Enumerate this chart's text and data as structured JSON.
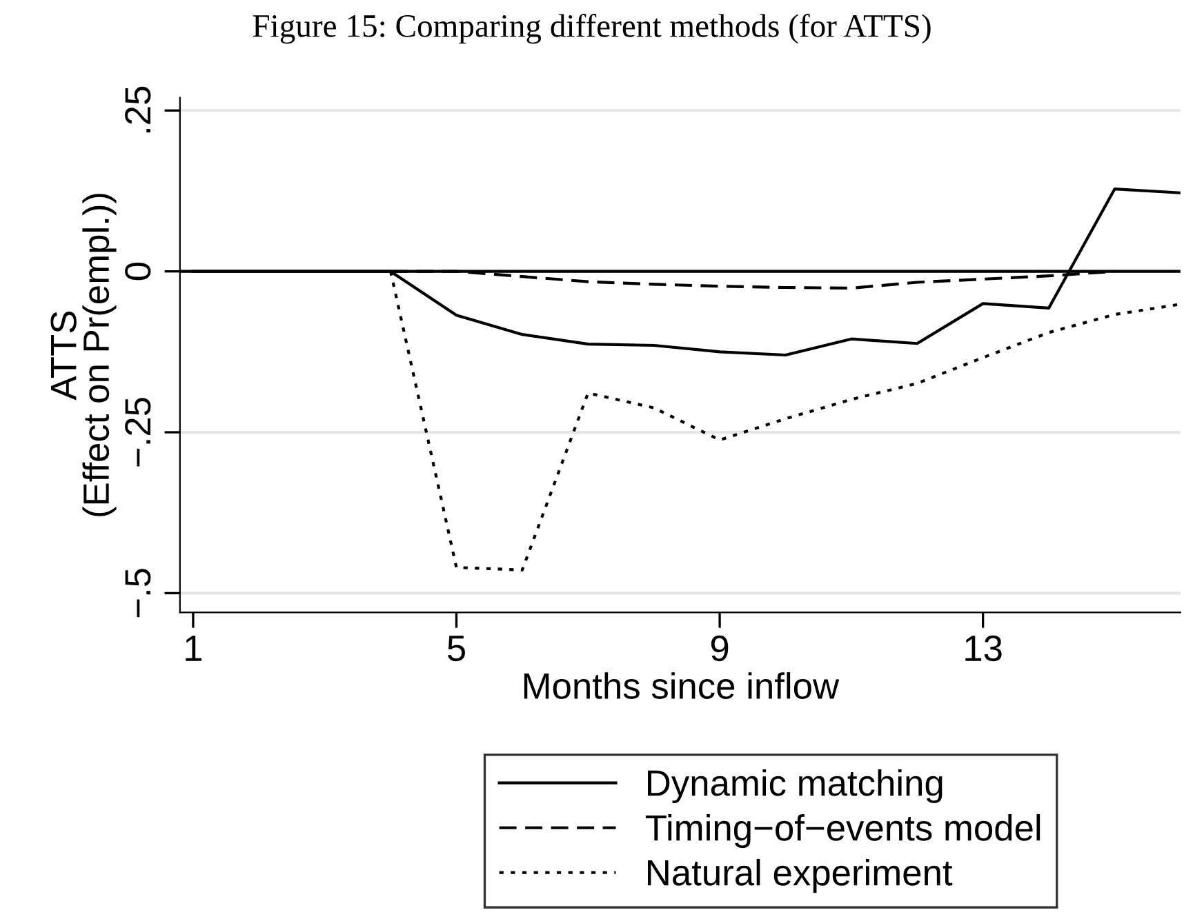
{
  "chart_data": {
    "type": "line",
    "title": "Figure 15: Comparing different methods (for ATTS)",
    "xlabel": "Months since inflow",
    "ylabel": "ATTS\n(Effect on Pr(empl.))",
    "x": [
      1,
      2,
      3,
      4,
      5,
      6,
      7,
      8,
      9,
      10,
      11,
      12,
      13,
      14,
      15,
      16
    ],
    "series": [
      {
        "name": "Dynamic matching",
        "color": "#000000",
        "line_style": "solid",
        "values": [
          0,
          0,
          0,
          0,
          -0.068,
          -0.098,
          -0.113,
          -0.115,
          -0.125,
          -0.13,
          -0.105,
          -0.112,
          -0.05,
          -0.057,
          0.128,
          0.122
        ]
      },
      {
        "name": "Timing−of−events model",
        "color": "#000000",
        "line_style": "dashed",
        "values": [
          null,
          null,
          null,
          0,
          0,
          -0.008,
          -0.016,
          -0.02,
          -0.023,
          -0.025,
          -0.026,
          -0.017,
          -0.012,
          -0.007,
          0,
          null
        ]
      },
      {
        "name": "Natural experiment",
        "color": "#000000",
        "line_style": "dotted",
        "values": [
          null,
          null,
          null,
          0,
          -0.46,
          -0.464,
          -0.189,
          -0.212,
          -0.262,
          -0.229,
          -0.199,
          -0.174,
          -0.134,
          -0.095,
          -0.067,
          -0.051
        ]
      }
    ],
    "xlim": [
      0.8,
      16
    ],
    "xticks": [
      1,
      5,
      9,
      13
    ],
    "ylim": [
      -0.53,
      0.27
    ],
    "yticks": [
      {
        "value": 0.25,
        "label": ".25"
      },
      0,
      {
        "value": -0.25,
        "label": "−.25"
      },
      {
        "value": -0.5,
        "label": "−.5"
      }
    ],
    "ref_lines": [
      {
        "axis": "y",
        "value": 0,
        "color": "#000000",
        "line_style": "solid"
      }
    ],
    "grid": "y",
    "legend": "bottom"
  }
}
